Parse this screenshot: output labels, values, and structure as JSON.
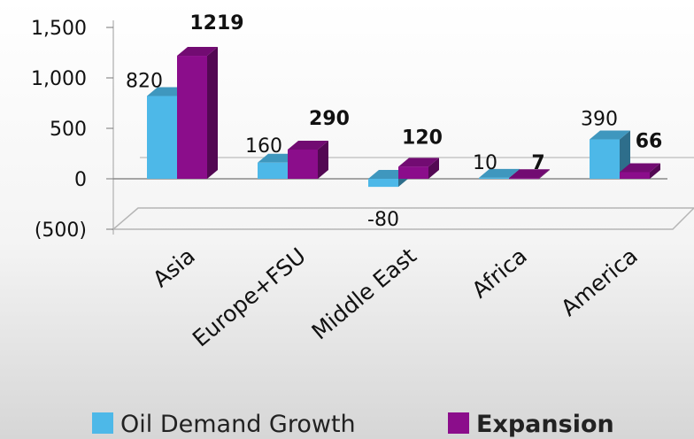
{
  "chart_data": {
    "type": "bar",
    "categories": [
      "Asia",
      "Europe+FSU",
      "Middle East",
      "Africa",
      "America"
    ],
    "series": [
      {
        "name": "Oil Demand Growth",
        "values": [
          820,
          160,
          -80,
          10,
          390
        ],
        "labels": [
          "820",
          "160",
          "-80",
          "10",
          "390"
        ],
        "label_bold": false,
        "color": "#4db8e8"
      },
      {
        "name": "Expansion",
        "values": [
          1219,
          290,
          120,
          7,
          66
        ],
        "labels": [
          "1219",
          "290",
          "120",
          "7",
          "66"
        ],
        "label_bold": true,
        "color": "#8b0d8b"
      }
    ],
    "y_ticks": [
      {
        "value": 1500,
        "label": "1,500"
      },
      {
        "value": 1000,
        "label": "1,000"
      },
      {
        "value": 500,
        "label": "500"
      },
      {
        "value": 0,
        "label": "0"
      },
      {
        "value": -500,
        "label": "(500)"
      }
    ],
    "ylim": [
      -500,
      1500
    ],
    "title": "",
    "xlabel": "",
    "ylabel": "",
    "grid": false,
    "legend_position": "bottom",
    "projection": "3d-column"
  }
}
